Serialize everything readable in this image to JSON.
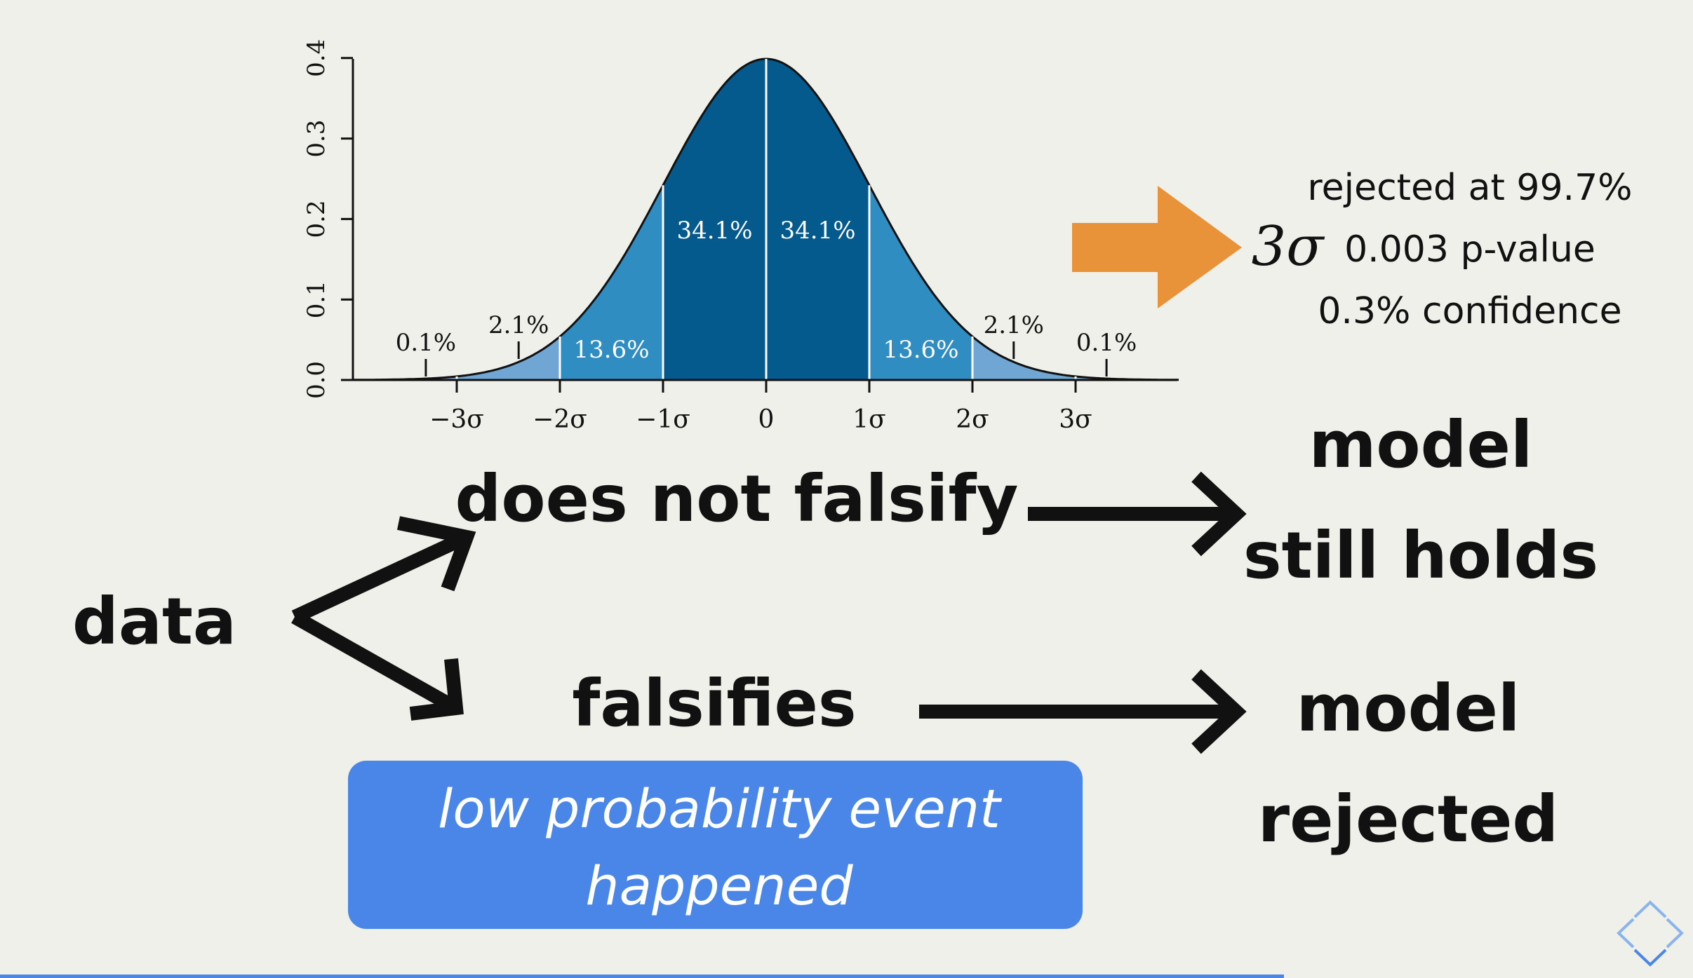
{
  "chart_data": {
    "type": "area",
    "title": "",
    "xlabel": "",
    "ylabel": "",
    "xlim": [
      -4,
      4
    ],
    "ylim": [
      0,
      0.4
    ],
    "y_ticks": [
      "0.0",
      "0.1",
      "0.2",
      "0.3",
      "0.4"
    ],
    "x_ticks": [
      {
        "value": -3,
        "label": "−3σ"
      },
      {
        "value": -2,
        "label": "−2σ"
      },
      {
        "value": -1,
        "label": "−1σ"
      },
      {
        "value": 0,
        "label": "0"
      },
      {
        "value": 1,
        "label": "1σ"
      },
      {
        "value": 2,
        "label": "2σ"
      },
      {
        "value": 3,
        "label": "3σ"
      }
    ],
    "bands": [
      {
        "from": -4,
        "to": -3,
        "color": "#7faad0"
      },
      {
        "from": -3,
        "to": -2,
        "color": "#6fa6d3"
      },
      {
        "from": -2,
        "to": -1,
        "color": "#2f8dc2"
      },
      {
        "from": -1,
        "to": 0,
        "color": "#045a8d"
      },
      {
        "from": 0,
        "to": 1,
        "color": "#045a8d"
      },
      {
        "from": 1,
        "to": 2,
        "color": "#2f8dc2"
      },
      {
        "from": 2,
        "to": 3,
        "color": "#6fa6d3"
      },
      {
        "from": 3,
        "to": 4,
        "color": "#7faad0"
      }
    ],
    "band_labels": [
      {
        "x": -0.5,
        "label": "34.1%",
        "inside": true
      },
      {
        "x": 0.5,
        "label": "34.1%",
        "inside": true
      },
      {
        "x": -1.5,
        "label": "13.6%",
        "inside": true
      },
      {
        "x": 1.5,
        "label": "13.6%",
        "inside": true
      },
      {
        "x": -2.4,
        "label": "2.1%",
        "inside": false
      },
      {
        "x": 2.4,
        "label": "2.1%",
        "inside": false
      },
      {
        "x": -3.3,
        "label": "0.1%",
        "inside": false
      },
      {
        "x": 3.3,
        "label": "0.1%",
        "inside": false
      }
    ]
  },
  "colors": {
    "arrow_orange": "#e8923a",
    "box_blue": "#4a86e8",
    "text": "#111111"
  },
  "sigma": {
    "symbol": "3σ",
    "lines": [
      "rejected at 99.7%",
      "0.003 p-value",
      "0.3% confidence"
    ]
  },
  "flow": {
    "data_label": "data",
    "upper_branch": "does not falsify",
    "lower_branch": "falsifies",
    "upper_result": [
      "model",
      "still holds"
    ],
    "lower_result": [
      "model",
      "rejected"
    ],
    "note": [
      "low probability event",
      "happened"
    ]
  },
  "nav_icon": "diamond-nav-icon"
}
